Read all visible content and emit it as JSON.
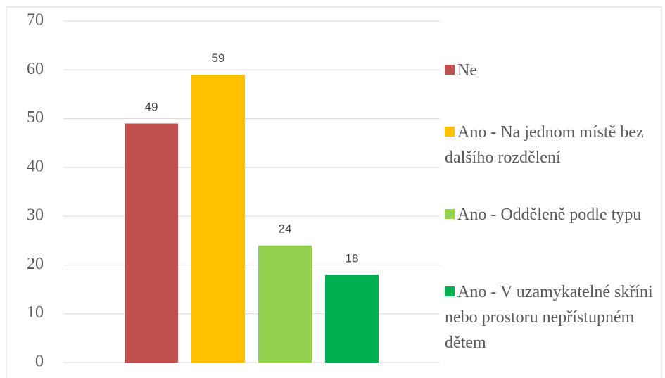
{
  "chart_data": {
    "type": "bar",
    "categories": [
      null
    ],
    "series": [
      {
        "name": "Ne",
        "color": "#c0504d",
        "values": [
          49
        ]
      },
      {
        "name": "Ano - Na jednom místě bez dalšího rozdělení",
        "color": "#ffc000",
        "values": [
          59
        ]
      },
      {
        "name": "Ano - Odděleně podle typu",
        "color": "#92d050",
        "values": [
          24
        ]
      },
      {
        "name": "Ano - V uzamykatelné skříni nebo prostoru nepřístupném dětem",
        "color": "#00b050",
        "values": [
          18
        ]
      }
    ],
    "ylim": [
      0,
      70
    ],
    "yticks": [
      0,
      10,
      20,
      30,
      40,
      50,
      60,
      70
    ],
    "grid": true,
    "legend": "right"
  }
}
